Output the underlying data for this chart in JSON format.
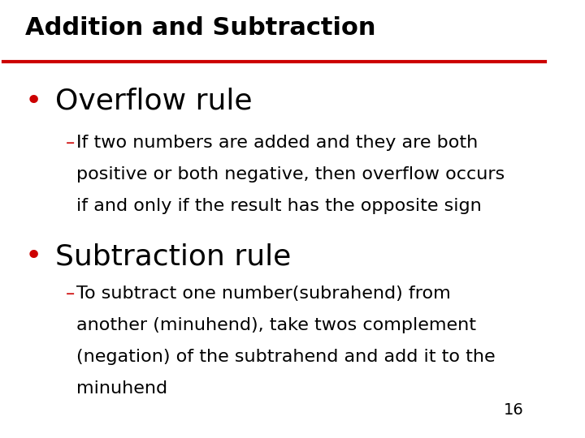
{
  "title": "Addition and Subtraction",
  "title_color": "#000000",
  "title_fontsize": 22,
  "red_line_color": "#CC0000",
  "background_color": "#FFFFFF",
  "bullet1_text": "Overflow rule",
  "bullet1_fontsize": 26,
  "sub1_lines": [
    "–If two numbers are added and they are both",
    "positive or both negative, then overflow occurs",
    "if and only if the result has the opposite sign"
  ],
  "sub1_fontsize": 16,
  "sub1_color": "#000000",
  "sub1_dash_color": "#CC0000",
  "bullet2_text": "Subtraction rule",
  "bullet2_fontsize": 26,
  "sub2_lines": [
    "–To subtract one number(subrahend) from",
    "another (minuhend), take twos complement",
    "(negation) of the subtrahend and add it to the",
    "minuhend"
  ],
  "sub2_fontsize": 16,
  "sub2_color": "#000000",
  "sub2_dash_color": "#CC0000",
  "bullet_color": "#CC0000",
  "page_number": "16",
  "page_number_fontsize": 14
}
